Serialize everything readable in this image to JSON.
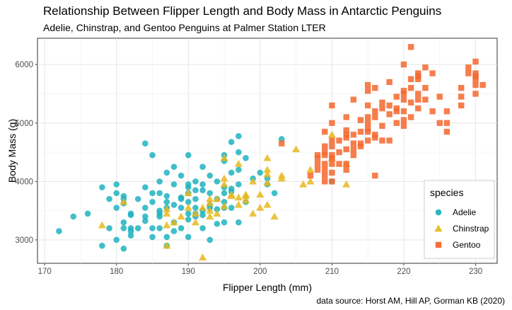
{
  "title": "Relationship Between Flipper Length and Body Mass in Antarctic Penguins",
  "subtitle": "Adelie, Chinstrap, and Gentoo Penguins at Palmer Station LTER",
  "caption": "data source: Horst AM, Hill AP, Gorman KB (2020)",
  "chart_data": {
    "type": "scatter",
    "xlabel": "Flipper Length (mm)",
    "ylabel": "Body Mass (g)",
    "xlim": [
      169,
      233
    ],
    "ylim": [
      2600,
      6450
    ],
    "xticks": [
      "170",
      "180",
      "190",
      "200",
      "210",
      "220",
      "230"
    ],
    "yticks": [
      "3000",
      "4000",
      "5000",
      "6000"
    ],
    "grid": true,
    "legend": {
      "title": "species",
      "position": "bottom-right"
    },
    "series": [
      {
        "name": "Adelie",
        "color": "#1fb3bf",
        "shape": "circle",
        "points": [
          [
            172,
            3150
          ],
          [
            174,
            3400
          ],
          [
            176,
            3450
          ],
          [
            178,
            3900
          ],
          [
            178,
            2900
          ],
          [
            179,
            3200
          ],
          [
            179,
            3700
          ],
          [
            180,
            3950
          ],
          [
            180,
            3550
          ],
          [
            180,
            3800
          ],
          [
            180,
            3000
          ],
          [
            181,
            3700
          ],
          [
            181,
            3300
          ],
          [
            181,
            3625
          ],
          [
            181,
            2850
          ],
          [
            181,
            3750
          ],
          [
            181,
            3200
          ],
          [
            182,
            3450
          ],
          [
            182,
            3150
          ],
          [
            182,
            3200
          ],
          [
            182,
            3425
          ],
          [
            182,
            3075
          ],
          [
            183,
            3700
          ],
          [
            183,
            3200
          ],
          [
            184,
            3550
          ],
          [
            184,
            4650
          ],
          [
            184,
            3325
          ],
          [
            184,
            3400
          ],
          [
            184,
            3900
          ],
          [
            185,
            3800
          ],
          [
            185,
            3050
          ],
          [
            185,
            4450
          ],
          [
            185,
            3650
          ],
          [
            185,
            3200
          ],
          [
            186,
            3800
          ],
          [
            186,
            3450
          ],
          [
            186,
            4000
          ],
          [
            186,
            3200
          ],
          [
            186,
            3500
          ],
          [
            186,
            3400
          ],
          [
            187,
            3750
          ],
          [
            187,
            3650
          ],
          [
            187,
            4150
          ],
          [
            187,
            3550
          ],
          [
            187,
            3050
          ],
          [
            187,
            2900
          ],
          [
            188,
            3300
          ],
          [
            188,
            3600
          ],
          [
            188,
            4250
          ],
          [
            188,
            3950
          ],
          [
            188,
            3150
          ],
          [
            189,
            3200
          ],
          [
            189,
            3550
          ],
          [
            189,
            3700
          ],
          [
            189,
            4100
          ],
          [
            189,
            3725
          ],
          [
            190,
            3350
          ],
          [
            190,
            3800
          ],
          [
            190,
            3900
          ],
          [
            190,
            3450
          ],
          [
            190,
            3950
          ],
          [
            190,
            3650
          ],
          [
            190,
            4450
          ],
          [
            190,
            3050
          ],
          [
            191,
            3400
          ],
          [
            191,
            3700
          ],
          [
            191,
            3450
          ],
          [
            191,
            4000
          ],
          [
            191,
            3550
          ],
          [
            191,
            3850
          ],
          [
            192,
            3425
          ],
          [
            192,
            3850
          ],
          [
            192,
            3950
          ],
          [
            192,
            3500
          ],
          [
            192,
            4250
          ],
          [
            192,
            3200
          ],
          [
            193,
            3600
          ],
          [
            193,
            4100
          ],
          [
            193,
            3550
          ],
          [
            193,
            3800
          ],
          [
            193,
            3000
          ],
          [
            194,
            3700
          ],
          [
            194,
            4000
          ],
          [
            194,
            3525
          ],
          [
            194,
            3275
          ],
          [
            195,
            3650
          ],
          [
            195,
            4350
          ],
          [
            195,
            3800
          ],
          [
            195,
            4450
          ],
          [
            195,
            3550
          ],
          [
            195,
            3900
          ],
          [
            195,
            3300
          ],
          [
            196,
            4150
          ],
          [
            196,
            3550
          ],
          [
            196,
            4675
          ],
          [
            196,
            3875
          ],
          [
            196,
            3825
          ],
          [
            197,
            4500
          ],
          [
            197,
            4775
          ],
          [
            197,
            3300
          ],
          [
            197,
            4200
          ],
          [
            197,
            3950
          ],
          [
            198,
            4400
          ],
          [
            198,
            3650
          ],
          [
            199,
            4050
          ],
          [
            200,
            4150
          ],
          [
            201,
            3950
          ],
          [
            201,
            4050
          ],
          [
            202,
            3800
          ],
          [
            203,
            4725
          ],
          [
            210,
            4000
          ]
        ]
      },
      {
        "name": "Chinstrap",
        "color": "#e6b91e",
        "shape": "triangle",
        "points": [
          [
            178,
            3250
          ],
          [
            181,
            3650
          ],
          [
            187,
            2900
          ],
          [
            187,
            3250
          ],
          [
            187,
            3450
          ],
          [
            187,
            3525
          ],
          [
            188,
            3300
          ],
          [
            189,
            3400
          ],
          [
            190,
            3550
          ],
          [
            190,
            3800
          ],
          [
            191,
            3450
          ],
          [
            191,
            3300
          ],
          [
            192,
            2700
          ],
          [
            192,
            3550
          ],
          [
            193,
            3500
          ],
          [
            193,
            3625
          ],
          [
            193,
            3700
          ],
          [
            193,
            3400
          ],
          [
            194,
            3450
          ],
          [
            194,
            3700
          ],
          [
            195,
            4050
          ],
          [
            195,
            3950
          ],
          [
            195,
            4400
          ],
          [
            195,
            3575
          ],
          [
            196,
            3775
          ],
          [
            196,
            3750
          ],
          [
            197,
            3600
          ],
          [
            197,
            4300
          ],
          [
            197,
            3725
          ],
          [
            198,
            3675
          ],
          [
            198,
            3750
          ],
          [
            198,
            3775
          ],
          [
            199,
            3450
          ],
          [
            199,
            4000
          ],
          [
            200,
            3775
          ],
          [
            200,
            3550
          ],
          [
            201,
            3600
          ],
          [
            201,
            3975
          ],
          [
            201,
            4400
          ],
          [
            201,
            4125
          ],
          [
            201,
            4200
          ],
          [
            202,
            3400
          ],
          [
            203,
            4050
          ],
          [
            203,
            4100
          ],
          [
            205,
            4550
          ],
          [
            206,
            3950
          ],
          [
            207,
            4000
          ],
          [
            207,
            4200
          ],
          [
            210,
            4400
          ],
          [
            210,
            4800
          ],
          [
            212,
            4300
          ],
          [
            212,
            3950
          ]
        ]
      },
      {
        "name": "Gentoo",
        "color": "#f4672e",
        "shape": "square",
        "points": [
          [
            203,
            4650
          ],
          [
            207,
            4100
          ],
          [
            208,
            4450
          ],
          [
            208,
            4200
          ],
          [
            208,
            4300
          ],
          [
            208,
            4400
          ],
          [
            209,
            4600
          ],
          [
            209,
            4000
          ],
          [
            209,
            4300
          ],
          [
            209,
            4500
          ],
          [
            209,
            4100
          ],
          [
            209,
            4200
          ],
          [
            209,
            4850
          ],
          [
            209,
            4450
          ],
          [
            210,
            4300
          ],
          [
            210,
            4400
          ],
          [
            210,
            4450
          ],
          [
            210,
            4600
          ],
          [
            210,
            4150
          ],
          [
            210,
            4000
          ],
          [
            210,
            5000
          ],
          [
            210,
            4700
          ],
          [
            210,
            5300
          ],
          [
            211,
            4500
          ],
          [
            211,
            4300
          ],
          [
            211,
            4700
          ],
          [
            212,
            4800
          ],
          [
            212,
            4750
          ],
          [
            212,
            4875
          ],
          [
            212,
            4200
          ],
          [
            212,
            4300
          ],
          [
            212,
            4550
          ],
          [
            212,
            5100
          ],
          [
            213,
            4450
          ],
          [
            213,
            4650
          ],
          [
            213,
            4800
          ],
          [
            213,
            5400
          ],
          [
            213,
            4550
          ],
          [
            214,
            4600
          ],
          [
            214,
            4850
          ],
          [
            214,
            4650
          ],
          [
            214,
            5050
          ],
          [
            215,
            4900
          ],
          [
            215,
            4700
          ],
          [
            215,
            5000
          ],
          [
            215,
            5100
          ],
          [
            215,
            4850
          ],
          [
            215,
            5650
          ],
          [
            215,
            5300
          ],
          [
            215,
            5550
          ],
          [
            216,
            4750
          ],
          [
            216,
            4800
          ],
          [
            216,
            5100
          ],
          [
            216,
            5200
          ],
          [
            216,
            4100
          ],
          [
            216,
            5600
          ],
          [
            217,
            4950
          ],
          [
            217,
            4700
          ],
          [
            217,
            5250
          ],
          [
            217,
            5350
          ],
          [
            218,
            5150
          ],
          [
            218,
            5300
          ],
          [
            218,
            5700
          ],
          [
            218,
            4700
          ],
          [
            219,
            5000
          ],
          [
            219,
            5200
          ],
          [
            219,
            5450
          ],
          [
            219,
            5250
          ],
          [
            220,
            5050
          ],
          [
            220,
            5200
          ],
          [
            220,
            5400
          ],
          [
            220,
            5550
          ],
          [
            220,
            5500
          ],
          [
            220,
            6000
          ],
          [
            220,
            4950
          ],
          [
            221,
            5350
          ],
          [
            221,
            5100
          ],
          [
            221,
            5600
          ],
          [
            221,
            5750
          ],
          [
            221,
            6300
          ],
          [
            222,
            5250
          ],
          [
            222,
            5850
          ],
          [
            222,
            5750
          ],
          [
            222,
            5500
          ],
          [
            222,
            5400
          ],
          [
            222,
            5800
          ],
          [
            223,
            5950
          ],
          [
            223,
            5400
          ],
          [
            223,
            5600
          ],
          [
            224,
            5850
          ],
          [
            224,
            5200
          ],
          [
            225,
            5450
          ],
          [
            225,
            5000
          ],
          [
            226,
            5200
          ],
          [
            226,
            5000
          ],
          [
            226,
            4850
          ],
          [
            228,
            5300
          ],
          [
            228,
            5450
          ],
          [
            228,
            5600
          ],
          [
            229,
            5950
          ],
          [
            229,
            5850
          ],
          [
            230,
            5650
          ],
          [
            230,
            5750
          ],
          [
            230,
            5500
          ],
          [
            230,
            6050
          ],
          [
            230,
            5800
          ],
          [
            230,
            5850
          ],
          [
            231,
            5650
          ]
        ]
      }
    ]
  }
}
